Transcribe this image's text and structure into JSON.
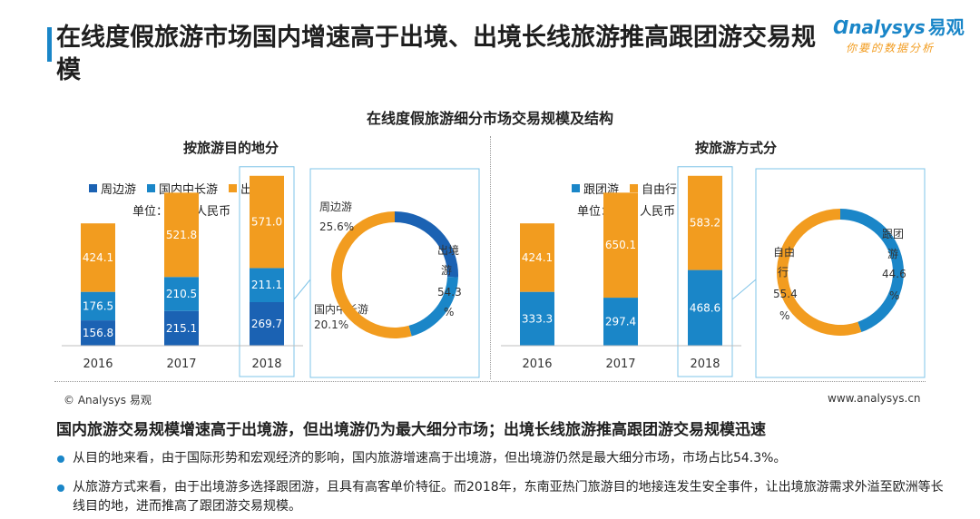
{
  "header": {
    "title": "在线度假旅游市场国内增速高于出境、出境长线旅游推高跟团游交易规模",
    "logo_text": "nalysys",
    "logo_zh": "易观",
    "logo_tagline": "你要的数据分析"
  },
  "chart_title": "在线度假旅游细分市场交易规模及结构",
  "colors": {
    "dark_blue": "#1b62b3",
    "mid_blue": "#1a86c8",
    "orange": "#f29c1f",
    "highlight_border": "#7fc4e8"
  },
  "chart_data": [
    {
      "type": "bar",
      "subtitle": "按旅游目的地分",
      "unit": "单位：亿元 人民币",
      "stacked": true,
      "categories": [
        "2016",
        "2017",
        "2018"
      ],
      "series": [
        {
          "name": "周边游",
          "color": "#1b62b3",
          "values": [
            156.8,
            215.1,
            269.7
          ]
        },
        {
          "name": "国内中长游",
          "color": "#1a86c8",
          "values": [
            176.5,
            210.5,
            211.1
          ]
        },
        {
          "name": "出境游",
          "color": "#f29c1f",
          "values": [
            424.1,
            521.8,
            571.0
          ]
        }
      ],
      "value_labels": [
        [
          "156.8",
          "215.1",
          "269.7"
        ],
        [
          "176.5",
          "210.5",
          "211.1"
        ],
        [
          "424.1",
          "521.8",
          "571.0"
        ]
      ],
      "highlight": "2018"
    },
    {
      "type": "pie",
      "subtitle": "",
      "year": "2018",
      "slices": [
        {
          "name": "周边游",
          "value": 25.6,
          "label": "25.6%",
          "color": "#1b62b3"
        },
        {
          "name": "国内中长游",
          "value": 20.1,
          "label": "20.1%",
          "color": "#1a86c8"
        },
        {
          "name": "出境游",
          "value": 54.3,
          "label": "54.3%",
          "color": "#f29c1f"
        }
      ]
    },
    {
      "type": "bar",
      "subtitle": "按旅游方式分",
      "unit": "单位：亿元 人民币",
      "stacked": true,
      "categories": [
        "2016",
        "2017",
        "2018"
      ],
      "series": [
        {
          "name": "跟团游",
          "color": "#1a86c8",
          "values": [
            333.3,
            297.4,
            468.6
          ]
        },
        {
          "name": "自由行",
          "color": "#f29c1f",
          "values": [
            424.1,
            650.1,
            583.2
          ]
        }
      ],
      "value_labels": [
        [
          "333.3",
          "297.4",
          "468.6"
        ],
        [
          "424.1",
          "650.1",
          "583.2"
        ]
      ],
      "highlight": "2018"
    },
    {
      "type": "pie",
      "subtitle": "",
      "year": "2018",
      "slices": [
        {
          "name": "跟团游",
          "value": 44.6,
          "label": "44.6%",
          "color": "#1a86c8"
        },
        {
          "name": "自由行",
          "value": 55.4,
          "label": "55.4%",
          "color": "#f29c1f"
        }
      ]
    }
  ],
  "footer": {
    "source": "© Analysys 易观",
    "website": "www.analysys.cn"
  },
  "conclusion": "国内旅游交易规模增速高于出境游，但出境游仍为最大细分市场；出境长线旅游推高跟团游交易规模迅速",
  "bullets": [
    "从目的地来看，由于国际形势和宏观经济的影响，国内旅游增速高于出境游，但出境游仍然是最大细分市场，市场占比54.3%。",
    "从旅游方式来看，由于出境游多选择跟团游，且具有高客单价特征。而2018年，东南亚热门旅游目的地接连发生安全事件，让出境旅游需求外溢至欧洲等长线目的地，进而推高了跟团游交易规模。"
  ]
}
